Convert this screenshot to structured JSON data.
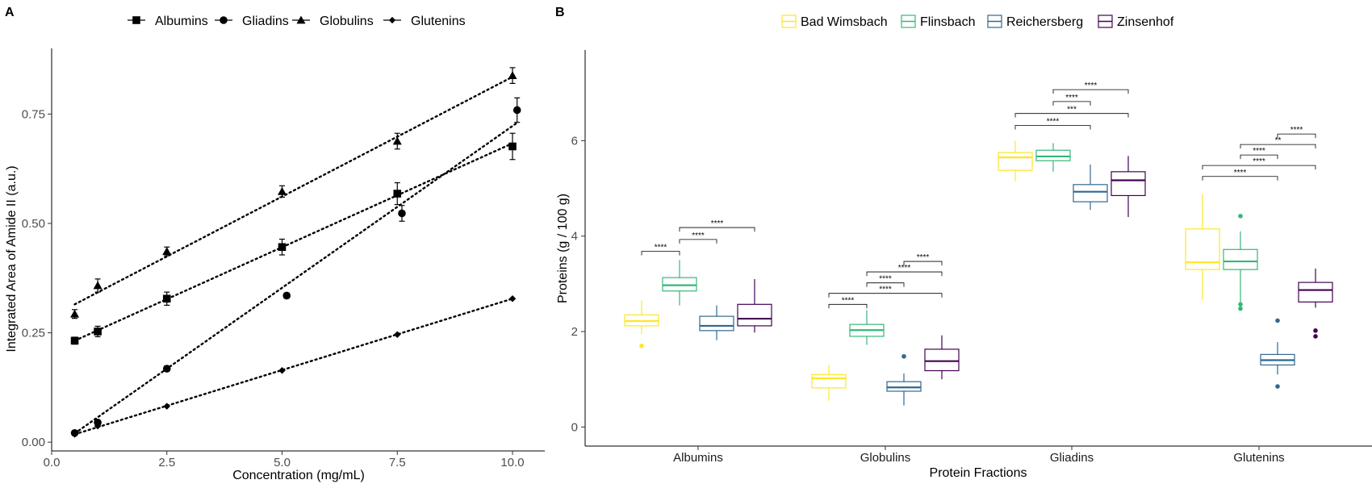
{
  "chart_data": [
    {
      "panel": "A",
      "type": "scatter",
      "xlabel": "Concentration (mg/mL)",
      "ylabel": "Integrated Area of Amide II (a.u.)",
      "xlim": [
        0,
        10.7
      ],
      "ylim": [
        -0.02,
        0.9
      ],
      "xticks": [
        0,
        2.5,
        5,
        7.5,
        10
      ],
      "xtick_labels": [
        "0.0",
        "2.5",
        "5.0",
        "7.5",
        "10.0"
      ],
      "yticks": [
        0,
        0.25,
        0.5,
        0.75
      ],
      "ytick_labels": [
        "0.00",
        "0.25",
        "0.50",
        "0.75"
      ],
      "legend_position": "top",
      "grid": false,
      "series": [
        {
          "name": "Albumins",
          "marker": "square",
          "points": [
            [
              0.5,
              0.232,
              0.008
            ],
            [
              1.0,
              0.253,
              0.012
            ],
            [
              2.5,
              0.328,
              0.015
            ],
            [
              5.0,
              0.446,
              0.018
            ],
            [
              7.5,
              0.568,
              0.025
            ],
            [
              10.0,
              0.676,
              0.03
            ]
          ],
          "fit": [
            [
              0.5,
              0.232
            ],
            [
              10.0,
              0.683
            ]
          ]
        },
        {
          "name": "Gliadins",
          "marker": "circle",
          "points": [
            [
              0.5,
              0.021,
              0.004
            ],
            [
              1.0,
              0.045,
              0.005
            ],
            [
              2.5,
              0.168,
              0.006
            ],
            [
              5.1,
              0.335,
              0.006
            ],
            [
              7.6,
              0.523,
              0.018
            ],
            [
              10.1,
              0.759,
              0.028
            ]
          ],
          "fit": [
            [
              0.5,
              0.02
            ],
            [
              10.1,
              0.73
            ]
          ]
        },
        {
          "name": "Globulins",
          "marker": "triangle",
          "points": [
            [
              0.5,
              0.293,
              0.01
            ],
            [
              1.0,
              0.358,
              0.015
            ],
            [
              2.5,
              0.436,
              0.01
            ],
            [
              5.0,
              0.573,
              0.013
            ],
            [
              7.5,
              0.688,
              0.018
            ],
            [
              10.0,
              0.838,
              0.018
            ]
          ],
          "fit": [
            [
              0.5,
              0.315
            ],
            [
              10.0,
              0.835
            ]
          ]
        },
        {
          "name": "Glutenins",
          "marker": "diamond",
          "points": [
            [
              0.5,
              0.018,
              0.003
            ],
            [
              1.0,
              0.037,
              0.003
            ],
            [
              2.5,
              0.082,
              0.003
            ],
            [
              5.0,
              0.164,
              0.003
            ],
            [
              7.5,
              0.246,
              0.003
            ],
            [
              10.0,
              0.328,
              0.003
            ]
          ],
          "fit": [
            [
              0.5,
              0.018
            ],
            [
              10.0,
              0.328
            ]
          ]
        }
      ]
    },
    {
      "panel": "B",
      "type": "box",
      "xlabel": "Protein Fractions",
      "ylabel": "Proteins (g / 100 g)",
      "ylim": [
        -0.4,
        7.9
      ],
      "yticks": [
        0,
        2,
        4,
        6
      ],
      "ytick_labels": [
        "0",
        "2",
        "4",
        "6"
      ],
      "legend_position": "top",
      "grid": false,
      "categories": [
        "Albumins",
        "Globulins",
        "Gliadins",
        "Glutenins"
      ],
      "groups": [
        {
          "name": "Bad Wimsbach",
          "color": "#FDE725"
        },
        {
          "name": "Flinsbach",
          "color": "#35B779"
        },
        {
          "name": "Reichersberg",
          "color": "#31688E"
        },
        {
          "name": "Zinsenhof",
          "color": "#440154"
        }
      ],
      "boxes": [
        [
          {
            "q1": 2.12,
            "median": 2.22,
            "q3": 2.35,
            "whisker_low": 1.95,
            "whisker_high": 2.65,
            "outliers": [
              1.7
            ]
          },
          {
            "q1": 2.85,
            "median": 2.97,
            "q3": 3.13,
            "whisker_low": 2.55,
            "whisker_high": 3.5,
            "outliers": []
          },
          {
            "q1": 2.02,
            "median": 2.12,
            "q3": 2.32,
            "whisker_low": 1.82,
            "whisker_high": 2.55,
            "outliers": []
          },
          {
            "q1": 2.12,
            "median": 2.27,
            "q3": 2.57,
            "whisker_low": 1.98,
            "whisker_high": 3.1,
            "outliers": []
          }
        ],
        [
          {
            "q1": 0.82,
            "median": 1.02,
            "q3": 1.1,
            "whisker_low": 0.55,
            "whisker_high": 1.3,
            "outliers": []
          },
          {
            "q1": 1.9,
            "median": 2.03,
            "q3": 2.15,
            "whisker_low": 1.72,
            "whisker_high": 2.45,
            "outliers": []
          },
          {
            "q1": 0.75,
            "median": 0.83,
            "q3": 0.95,
            "whisker_low": 0.45,
            "whisker_high": 1.12,
            "outliers": [
              1.48
            ]
          },
          {
            "q1": 1.18,
            "median": 1.38,
            "q3": 1.63,
            "whisker_low": 1.0,
            "whisker_high": 1.92,
            "outliers": []
          }
        ],
        [
          {
            "q1": 5.38,
            "median": 5.65,
            "q3": 5.75,
            "whisker_low": 5.15,
            "whisker_high": 6.0,
            "outliers": []
          },
          {
            "q1": 5.58,
            "median": 5.67,
            "q3": 5.8,
            "whisker_low": 5.35,
            "whisker_high": 5.95,
            "outliers": []
          },
          {
            "q1": 4.72,
            "median": 4.93,
            "q3": 5.08,
            "whisker_low": 4.55,
            "whisker_high": 5.5,
            "outliers": []
          },
          {
            "q1": 4.85,
            "median": 5.17,
            "q3": 5.35,
            "whisker_low": 4.4,
            "whisker_high": 5.68,
            "outliers": []
          }
        ],
        [
          {
            "q1": 3.3,
            "median": 3.45,
            "q3": 4.15,
            "whisker_low": 2.65,
            "whisker_high": 4.88,
            "outliers": []
          },
          {
            "q1": 3.3,
            "median": 3.47,
            "q3": 3.72,
            "whisker_low": 2.6,
            "whisker_high": 4.1,
            "outliers": [
              4.42,
              2.57,
              2.48
            ]
          },
          {
            "q1": 1.3,
            "median": 1.4,
            "q3": 1.52,
            "whisker_low": 1.1,
            "whisker_high": 1.78,
            "outliers": [
              2.23,
              0.85
            ]
          },
          {
            "q1": 2.62,
            "median": 2.87,
            "q3": 3.03,
            "whisker_low": 2.5,
            "whisker_high": 3.32,
            "outliers": [
              2.02,
              1.9
            ]
          }
        ]
      ],
      "significance": [
        {
          "category": 0,
          "from": 0,
          "to": 1,
          "y": 3.68,
          "label": "****"
        },
        {
          "category": 0,
          "from": 1,
          "to": 2,
          "y": 3.93,
          "label": "****"
        },
        {
          "category": 0,
          "from": 1,
          "to": 3,
          "y": 4.18,
          "label": "****"
        },
        {
          "category": 1,
          "from": 0,
          "to": 1,
          "y": 2.57,
          "label": "****"
        },
        {
          "category": 1,
          "from": 0,
          "to": 3,
          "y": 2.8,
          "label": "****"
        },
        {
          "category": 1,
          "from": 1,
          "to": 2,
          "y": 3.02,
          "label": "****"
        },
        {
          "category": 1,
          "from": 1,
          "to": 3,
          "y": 3.25,
          "label": "****"
        },
        {
          "category": 1,
          "from": 2,
          "to": 3,
          "y": 3.47,
          "label": "****"
        },
        {
          "category": 2,
          "from": 0,
          "to": 2,
          "y": 6.32,
          "label": "****"
        },
        {
          "category": 2,
          "from": 0,
          "to": 3,
          "y": 6.57,
          "label": "***"
        },
        {
          "category": 2,
          "from": 1,
          "to": 2,
          "y": 6.82,
          "label": "****"
        },
        {
          "category": 2,
          "from": 1,
          "to": 3,
          "y": 7.07,
          "label": "****"
        },
        {
          "category": 3,
          "from": 0,
          "to": 2,
          "y": 5.25,
          "label": "****"
        },
        {
          "category": 3,
          "from": 0,
          "to": 3,
          "y": 5.48,
          "label": "****"
        },
        {
          "category": 3,
          "from": 1,
          "to": 2,
          "y": 5.7,
          "label": "****"
        },
        {
          "category": 3,
          "from": 1,
          "to": 3,
          "y": 5.92,
          "label": "**"
        },
        {
          "category": 3,
          "from": 2,
          "to": 3,
          "y": 6.14,
          "label": "****"
        }
      ]
    }
  ]
}
